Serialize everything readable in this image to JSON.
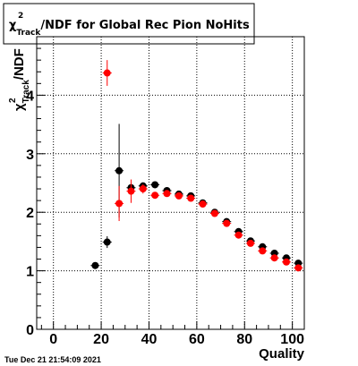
{
  "title": {
    "prefix": "χ",
    "sup": "2",
    "sub": "Track",
    "suffix": "/NDF for Global Rec Pion NoHits"
  },
  "timestamp": "Tue Dec 21 21:54:09 2021",
  "chart_data": {
    "type": "scatter",
    "title": "χ²_Track/NDF for Global Rec Pion NoHits",
    "xlabel": "Quality",
    "ylabel": "χ²_Track/NDF",
    "xlim": [
      -7,
      105
    ],
    "ylim": [
      0,
      5
    ],
    "x_ticks": [
      0,
      20,
      40,
      60,
      80,
      100
    ],
    "x_tick_labels": [
      "0",
      "20",
      "40",
      "60",
      "80",
      "100"
    ],
    "y_ticks": [
      0,
      1,
      2,
      3,
      4
    ],
    "y_tick_labels": [
      "0",
      "1",
      "2",
      "3",
      "4"
    ],
    "grid": true,
    "colors": {
      "black_series": "#000000",
      "red_series": "#ff0000"
    },
    "series": [
      {
        "color": "black",
        "points": [
          {
            "x": 17.5,
            "y": 1.09,
            "yerr": 0.02
          },
          {
            "x": 22.5,
            "y": 1.49,
            "yerr": 0.1
          },
          {
            "x": 27.5,
            "y": 2.71,
            "yerr": 0.8
          },
          {
            "x": 32.5,
            "y": 2.42,
            "yerr": 0.08
          },
          {
            "x": 37.5,
            "y": 2.45,
            "yerr": 0.06
          },
          {
            "x": 42.5,
            "y": 2.47,
            "yerr": 0.04
          },
          {
            "x": 47.5,
            "y": 2.37,
            "yerr": 0.03
          },
          {
            "x": 52.5,
            "y": 2.31,
            "yerr": 0.02
          },
          {
            "x": 57.5,
            "y": 2.28,
            "yerr": 0.02
          },
          {
            "x": 62.5,
            "y": 2.16,
            "yerr": 0.02
          },
          {
            "x": 67.5,
            "y": 2.0,
            "yerr": 0.02
          },
          {
            "x": 72.5,
            "y": 1.84,
            "yerr": 0.02
          },
          {
            "x": 77.5,
            "y": 1.67,
            "yerr": 0.02
          },
          {
            "x": 82.5,
            "y": 1.51,
            "yerr": 0.02
          },
          {
            "x": 87.5,
            "y": 1.41,
            "yerr": 0.02
          },
          {
            "x": 92.5,
            "y": 1.3,
            "yerr": 0.02
          },
          {
            "x": 97.5,
            "y": 1.22,
            "yerr": 0.02
          },
          {
            "x": 102.5,
            "y": 1.13,
            "yerr": 0.02
          }
        ]
      },
      {
        "color": "red",
        "points": [
          {
            "x": 22.5,
            "y": 4.38,
            "yerr": 0.22
          },
          {
            "x": 27.5,
            "y": 2.15,
            "yerr": 0.3
          },
          {
            "x": 32.5,
            "y": 2.36,
            "yerr": 0.2
          },
          {
            "x": 37.5,
            "y": 2.4,
            "yerr": 0.08
          },
          {
            "x": 42.5,
            "y": 2.29,
            "yerr": 0.04
          },
          {
            "x": 47.5,
            "y": 2.32,
            "yerr": 0.03
          },
          {
            "x": 52.5,
            "y": 2.28,
            "yerr": 0.02
          },
          {
            "x": 57.5,
            "y": 2.24,
            "yerr": 0.02
          },
          {
            "x": 62.5,
            "y": 2.14,
            "yerr": 0.02
          },
          {
            "x": 67.5,
            "y": 1.98,
            "yerr": 0.02
          },
          {
            "x": 72.5,
            "y": 1.81,
            "yerr": 0.02
          },
          {
            "x": 77.5,
            "y": 1.61,
            "yerr": 0.02
          },
          {
            "x": 82.5,
            "y": 1.47,
            "yerr": 0.02
          },
          {
            "x": 87.5,
            "y": 1.34,
            "yerr": 0.02
          },
          {
            "x": 92.5,
            "y": 1.22,
            "yerr": 0.02
          },
          {
            "x": 97.5,
            "y": 1.15,
            "yerr": 0.02
          },
          {
            "x": 102.5,
            "y": 1.05,
            "yerr": 0.02
          }
        ]
      }
    ]
  }
}
